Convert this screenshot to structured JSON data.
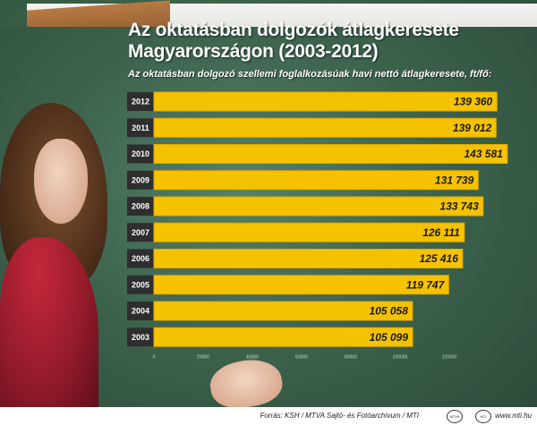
{
  "title_line1": "Az oktatásban dolgozók átlagkeresete",
  "title_line2": "Magyarországon (2003-2012)",
  "subtitle": "Az oktatásban dolgozó szellemi foglalkozásúak havi nettó átlagkeresete, ft/fő:",
  "footer": {
    "source": "Forrás: KSH / MTVA Sajtó- és Fotóarchívum / MTI",
    "site": "www.mti.hu",
    "logo1": "MTVA",
    "logo2": "MTI"
  },
  "chart_data": {
    "type": "bar",
    "orientation": "horizontal",
    "categories": [
      "2012",
      "2011",
      "2010",
      "2009",
      "2008",
      "2007",
      "2006",
      "2005",
      "2004",
      "2003"
    ],
    "values": [
      139360,
      139012,
      143581,
      131739,
      133743,
      126111,
      125416,
      119747,
      105058,
      105099
    ],
    "value_labels": [
      "139 360",
      "139 012",
      "143 581",
      "131 739",
      "133 743",
      "126 111",
      "125 416",
      "119 747",
      "105 058",
      "105 099"
    ],
    "xlim": [
      0,
      140000
    ],
    "xticks": [
      0,
      20000,
      40000,
      60000,
      80000,
      100000,
      120000
    ],
    "xtick_labels": [
      "0",
      "20000",
      "40000",
      "60000",
      "80000",
      "100000",
      "120000"
    ],
    "grid": false,
    "colors": {
      "bar": "#f5c200",
      "bar_edge": "#e6a800",
      "year_bg": "#2e2e2e"
    }
  }
}
